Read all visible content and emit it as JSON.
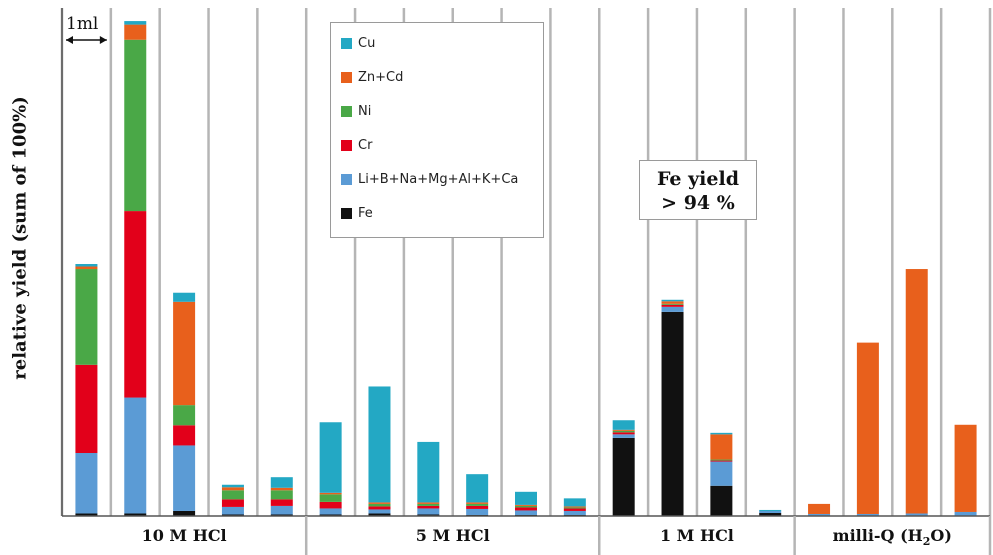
{
  "chart_data": {
    "type": "bar",
    "stacked": true,
    "ylabel": "relative yield (sum of 100%)",
    "groups": [
      {
        "name": "10 M HCl",
        "fractions": 5
      },
      {
        "name": "5 M HCl",
        "fractions": 6
      },
      {
        "name": "1 M HCl",
        "fractions": 4
      },
      {
        "name": "milli-Q (H",
        "name_sub": "2",
        "name_tail": "O)",
        "fractions": 4
      }
    ],
    "fraction_volume_label": "1ml",
    "annotation": {
      "line1": "Fe yield",
      "line2": "> 94 %"
    },
    "series_order_bottom_to_top": [
      "Fe",
      "Li+B+Na+Mg+Al+K+Ca",
      "Cr",
      "Ni",
      "Zn+Cd",
      "Cu"
    ],
    "legend": [
      {
        "name": "Cu",
        "color": "#23a8c4"
      },
      {
        "name": "Zn+Cd",
        "color": "#e8601c"
      },
      {
        "name": "Ni",
        "color": "#4aa847"
      },
      {
        "name": "Cr",
        "color": "#e2001a"
      },
      {
        "name": "Li+B+Na+Mg+Al+K+Ca",
        "color": "#5b9bd5"
      },
      {
        "name": "Fe",
        "color": "#111111"
      }
    ],
    "ylim": [
      0,
      100
    ],
    "bars": [
      {
        "Fe": 0.5,
        "Li+B+Na+Mg+Al+K+Ca": 12.0,
        "Cr": 17.5,
        "Ni": 19.0,
        "Zn+Cd": 0.5,
        "Cu": 0.5
      },
      {
        "Fe": 0.5,
        "Li+B+Na+Mg+Al+K+Ca": 23.0,
        "Cr": 37.0,
        "Ni": 34.0,
        "Zn+Cd": 3.0,
        "Cu": 0.7
      },
      {
        "Fe": 1.0,
        "Li+B+Na+Mg+Al+K+Ca": 13.0,
        "Cr": 4.0,
        "Ni": 4.0,
        "Zn+Cd": 20.5,
        "Cu": 1.8
      },
      {
        "Fe": 0.3,
        "Li+B+Na+Mg+Al+K+Ca": 1.5,
        "Cr": 1.5,
        "Ni": 1.8,
        "Zn+Cd": 0.6,
        "Cu": 0.5
      },
      {
        "Fe": 0.3,
        "Li+B+Na+Mg+Al+K+Ca": 1.7,
        "Cr": 1.3,
        "Ni": 1.8,
        "Zn+Cd": 0.5,
        "Cu": 2.1
      },
      {
        "Fe": 0.3,
        "Li+B+Na+Mg+Al+K+Ca": 1.2,
        "Cr": 1.3,
        "Ni": 1.5,
        "Zn+Cd": 0.3,
        "Cu": 14.0
      },
      {
        "Fe": 0.5,
        "Li+B+Na+Mg+Al+K+Ca": 0.8,
        "Cr": 0.6,
        "Ni": 0.5,
        "Zn+Cd": 0.3,
        "Cu": 23.0
      },
      {
        "Fe": 0.3,
        "Li+B+Na+Mg+Al+K+Ca": 1.2,
        "Cr": 0.5,
        "Ni": 0.4,
        "Zn+Cd": 0.3,
        "Cu": 12.0
      },
      {
        "Fe": 0.2,
        "Li+B+Na+Mg+Al+K+Ca": 1.2,
        "Cr": 0.6,
        "Ni": 0.4,
        "Zn+Cd": 0.3,
        "Cu": 5.6
      },
      {
        "Fe": 0.2,
        "Li+B+Na+Mg+Al+K+Ca": 0.9,
        "Cr": 0.6,
        "Ni": 0.3,
        "Zn+Cd": 0.2,
        "Cu": 2.6
      },
      {
        "Fe": 0.2,
        "Li+B+Na+Mg+Al+K+Ca": 0.8,
        "Cr": 0.5,
        "Ni": 0.2,
        "Zn+Cd": 0.2,
        "Cu": 1.6
      },
      {
        "Fe": 15.5,
        "Li+B+Na+Mg+Al+K+Ca": 0.7,
        "Cr": 0.4,
        "Ni": 0.3,
        "Zn+Cd": 0.2,
        "Cu": 1.9
      },
      {
        "Fe": 40.5,
        "Li+B+Na+Mg+Al+K+Ca": 1.0,
        "Cr": 0.4,
        "Ni": 0.2,
        "Zn+Cd": 0.5,
        "Cu": 0.3
      },
      {
        "Fe": 6.0,
        "Li+B+Na+Mg+Al+K+Ca": 4.8,
        "Cr": 0.2,
        "Ni": 0.2,
        "Zn+Cd": 5.0,
        "Cu": 0.3
      },
      {
        "Fe": 0.6,
        "Li+B+Na+Mg+Al+K+Ca": 0.4,
        "Cr": 0.0,
        "Ni": 0.0,
        "Zn+Cd": 0.0,
        "Cu": 0.2
      },
      {
        "Fe": 0.0,
        "Li+B+Na+Mg+Al+K+Ca": 0.4,
        "Cr": 0.0,
        "Ni": 0.0,
        "Zn+Cd": 2.0,
        "Cu": 0.0
      },
      {
        "Fe": 0.0,
        "Li+B+Na+Mg+Al+K+Ca": 0.4,
        "Cr": 0.0,
        "Ni": 0.0,
        "Zn+Cd": 34.0,
        "Cu": 0.0
      },
      {
        "Fe": 0.0,
        "Li+B+Na+Mg+Al+K+Ca": 0.5,
        "Cr": 0.0,
        "Ni": 0.0,
        "Zn+Cd": 48.5,
        "Cu": 0.0
      },
      {
        "Fe": 0.0,
        "Li+B+Na+Mg+Al+K+Ca": 0.8,
        "Cr": 0.0,
        "Ni": 0.0,
        "Zn+Cd": 17.3,
        "Cu": 0.0
      }
    ]
  }
}
